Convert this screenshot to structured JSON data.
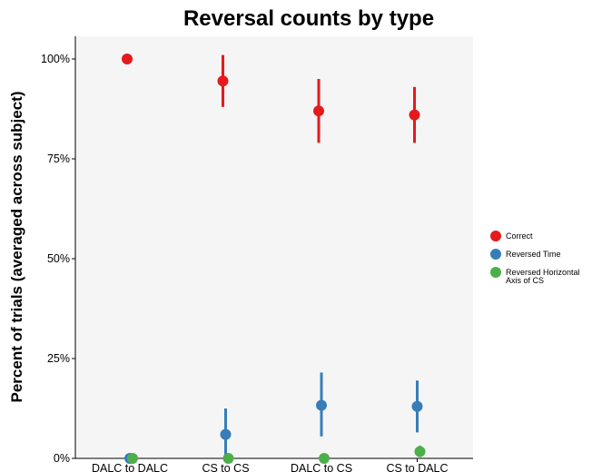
{
  "chart_data": {
    "type": "scatter",
    "title": "Reversal counts by type",
    "xlabel": "",
    "ylabel": "Percent of trials (averaged across subject)",
    "categories": [
      "DALC to DALC",
      "CS to CS",
      "DALC to CS",
      "CS to DALC"
    ],
    "yticks": [
      "0%",
      "25%",
      "50%",
      "75%",
      "100%"
    ],
    "ylim": [
      0,
      100
    ],
    "grid": false,
    "legend_position": "right",
    "error_bars": true,
    "series": [
      {
        "name": "Correct",
        "color": "#e41a1c",
        "values": [
          100,
          94.5,
          87,
          86
        ],
        "error_low": [
          100,
          88,
          79,
          79
        ],
        "error_high": [
          100,
          101,
          95,
          93
        ]
      },
      {
        "name": "Reversed Time",
        "color": "#377eb8",
        "values": [
          0,
          6,
          13.3,
          13
        ],
        "error_low": [
          0,
          0,
          5.5,
          6.5
        ],
        "error_high": [
          0,
          12.5,
          21.5,
          19.5
        ]
      },
      {
        "name": "Reversed Horizontal Axis of CS",
        "color": "#4daf4a",
        "values": [
          0,
          0,
          0,
          1.7
        ],
        "error_low": [
          0,
          0,
          0,
          0.3
        ],
        "error_high": [
          0,
          0,
          0,
          3.2
        ]
      }
    ],
    "legend_lines": [
      [
        "Correct"
      ],
      [
        "Reversed Time"
      ],
      [
        "Reversed Horizontal",
        "Axis of CS"
      ]
    ]
  }
}
